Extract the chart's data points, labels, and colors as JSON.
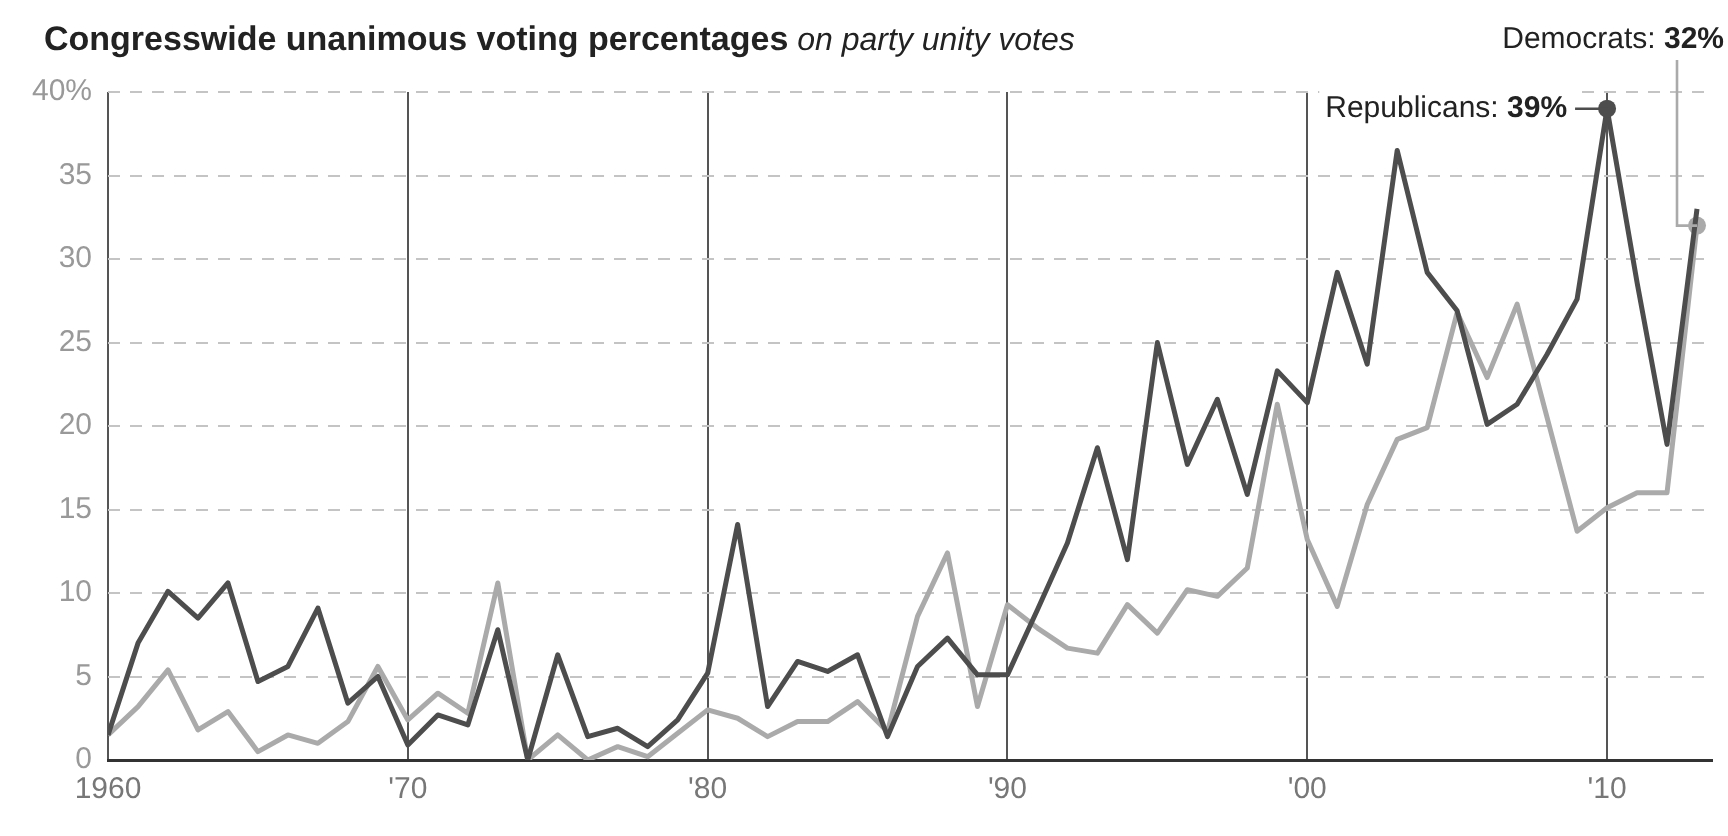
{
  "chart_data": {
    "type": "line",
    "title": "Congresswide unanimous voting percentages",
    "subtitle": "on party unity votes",
    "x": [
      1960,
      1961,
      1962,
      1963,
      1964,
      1965,
      1966,
      1967,
      1968,
      1969,
      1970,
      1971,
      1972,
      1973,
      1974,
      1975,
      1976,
      1977,
      1978,
      1979,
      1980,
      1981,
      1982,
      1983,
      1984,
      1985,
      1986,
      1987,
      1988,
      1989,
      1990,
      1991,
      1992,
      1993,
      1994,
      1995,
      1996,
      1997,
      1998,
      1999,
      2000,
      2001,
      2002,
      2003,
      2004,
      2005,
      2006,
      2007,
      2008,
      2009,
      2010,
      2011,
      2012,
      2013
    ],
    "series": [
      {
        "name": "Republicans:",
        "color": "#4d4d4d",
        "values": [
          1.5,
          7,
          10.1,
          8.5,
          10.6,
          4.7,
          5.6,
          9.1,
          3.4,
          5,
          0.9,
          2.7,
          2.1,
          7.8,
          0,
          6.3,
          1.4,
          1.9,
          0.8,
          2.4,
          5.2,
          14.1,
          3.2,
          5.9,
          5.3,
          6.3,
          1.4,
          5.6,
          7.3,
          5.1,
          5.1,
          9,
          13,
          18.7,
          12,
          25,
          17.7,
          21.6,
          15.9,
          23.3,
          21.4,
          29.2,
          23.7,
          36.5,
          29.2,
          26.9,
          20.1,
          21.3,
          24.3,
          27.6,
          39,
          28.6,
          18.9,
          33
        ],
        "value_labels": [
          null,
          null,
          null,
          null,
          null,
          null,
          null,
          null,
          null,
          null,
          null,
          null,
          null,
          null,
          null,
          null,
          null,
          null,
          null,
          null,
          null,
          null,
          null,
          null,
          null,
          null,
          null,
          null,
          null,
          null,
          null,
          null,
          null,
          null,
          null,
          null,
          null,
          null,
          null,
          null,
          null,
          null,
          null,
          null,
          null,
          null,
          null,
          null,
          null,
          null,
          "39%",
          null,
          null,
          null
        ]
      },
      {
        "name": "Democrats:",
        "color": "#aaaaaa",
        "values": [
          1.5,
          3.2,
          5.4,
          1.8,
          2.9,
          0.5,
          1.5,
          1,
          2.3,
          5.6,
          2.4,
          4,
          2.8,
          10.6,
          0,
          1.5,
          0,
          0.8,
          0.2,
          1.6,
          3,
          2.5,
          1.4,
          2.3,
          2.3,
          3.5,
          1.7,
          8.6,
          12.4,
          3.2,
          9.3,
          7.9,
          6.7,
          6.4,
          9.3,
          7.6,
          10.2,
          9.8,
          11.5,
          21.3,
          13.2,
          9.2,
          15.3,
          19.2,
          19.9,
          26.8,
          22.9,
          27.3,
          20.5,
          13.7,
          15.1,
          16,
          16,
          32
        ],
        "value_labels": [
          null,
          null,
          null,
          null,
          null,
          null,
          null,
          null,
          null,
          null,
          null,
          null,
          null,
          null,
          null,
          null,
          null,
          null,
          null,
          null,
          null,
          null,
          null,
          null,
          null,
          null,
          null,
          null,
          null,
          null,
          null,
          null,
          null,
          null,
          null,
          null,
          null,
          null,
          null,
          null,
          null,
          null,
          null,
          null,
          null,
          null,
          null,
          null,
          null,
          null,
          null,
          null,
          null,
          "32%"
        ]
      }
    ],
    "xlim": [
      1960,
      2013.5
    ],
    "xticks": [
      {
        "value": 1960,
        "label": "1960"
      },
      {
        "value": 1970,
        "label": "'70"
      },
      {
        "value": 1980,
        "label": "'80"
      },
      {
        "value": 1990,
        "label": "'90"
      },
      {
        "value": 2000,
        "label": "'00"
      },
      {
        "value": 2010,
        "label": "'10"
      }
    ],
    "ylim": [
      0,
      40
    ],
    "yticks": [
      0,
      5,
      10,
      15,
      20,
      25,
      30,
      35,
      {
        "value": 40,
        "label": "40%"
      }
    ],
    "grid": true,
    "legend": false,
    "marker": "none",
    "line_style": "solid"
  }
}
